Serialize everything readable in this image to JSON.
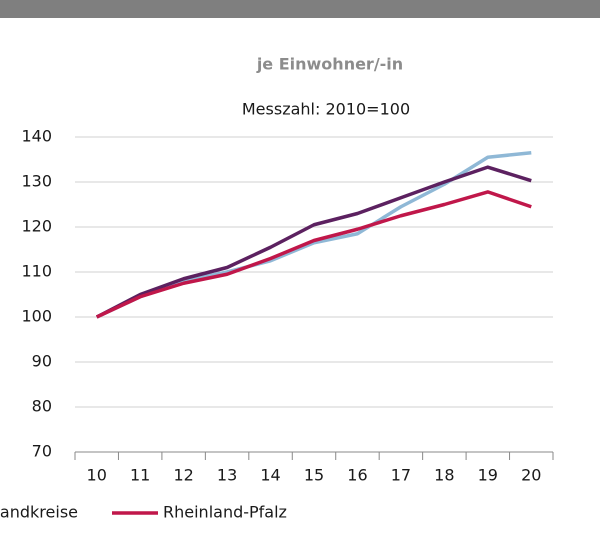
{
  "chart_data": {
    "type": "line",
    "title": "je Einwohner/-in",
    "subtitle": "Messzahl: 2010=100",
    "categories": [
      "10",
      "11",
      "12",
      "13",
      "14",
      "15",
      "16",
      "17",
      "18",
      "19",
      "20"
    ],
    "series": [
      {
        "color": "#8fb8d6",
        "values": [
          100,
          104.5,
          108,
          110,
          112.5,
          116.5,
          118.5,
          124.5,
          129.5,
          135.5,
          136.5
        ]
      },
      {
        "name": "Landkreise",
        "color": "#5c2160",
        "values": [
          100,
          105,
          108.5,
          111,
          115.5,
          120.5,
          123,
          126.5,
          130,
          133.3,
          130.3
        ]
      },
      {
        "name": "Rheinland-Pfalz",
        "color": "#c0174a",
        "values": [
          100,
          104.5,
          107.5,
          109.5,
          113,
          117,
          119.5,
          122.5,
          125,
          127.8,
          124.5
        ]
      }
    ],
    "ylim": [
      70,
      140
    ],
    "yticks": [
      70,
      80,
      90,
      100,
      110,
      120,
      130,
      140
    ],
    "grid": true
  }
}
